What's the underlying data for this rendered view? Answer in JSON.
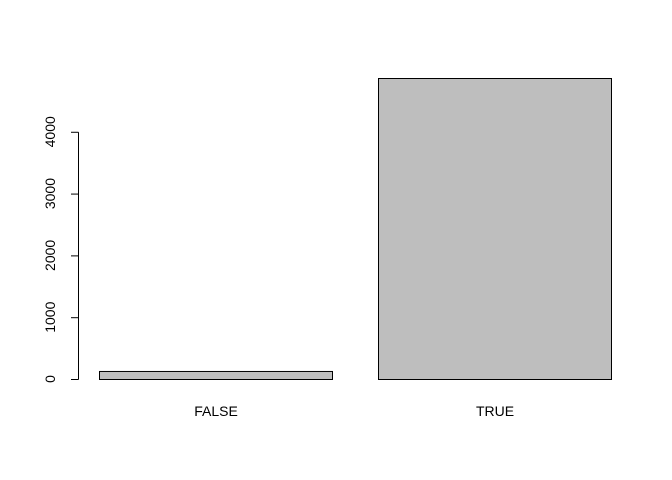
{
  "chart_data": {
    "type": "bar",
    "categories": [
      "FALSE",
      "TRUE"
    ],
    "values": [
      130,
      4870
    ],
    "ylim": [
      0,
      4870
    ],
    "yticks": [
      0,
      1000,
      2000,
      3000,
      4000
    ],
    "ytick_labels": [
      "0",
      "1000",
      "2000",
      "3000",
      "4000"
    ],
    "title": "",
    "xlabel": "",
    "ylabel": "",
    "grid": false,
    "bar_color": "#bebebe",
    "border_color": "#000000"
  }
}
